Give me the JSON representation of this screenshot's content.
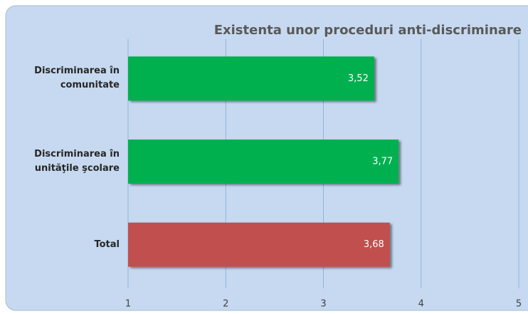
{
  "chart_data": {
    "type": "barh",
    "title": "Existenta unor proceduri anti-discriminare",
    "categories": [
      "Discriminarea în comunitate",
      "Discriminarea în unităţile şcolare",
      "Total"
    ],
    "values": [
      3.52,
      3.77,
      3.68
    ],
    "value_labels": [
      "3,52",
      "3,77",
      "3,68"
    ],
    "colors": [
      "#00b050",
      "#00b050",
      "#c0504d"
    ],
    "xlim": [
      1,
      5
    ],
    "xticks": [
      1,
      2,
      3,
      4,
      5
    ],
    "grid": true
  }
}
